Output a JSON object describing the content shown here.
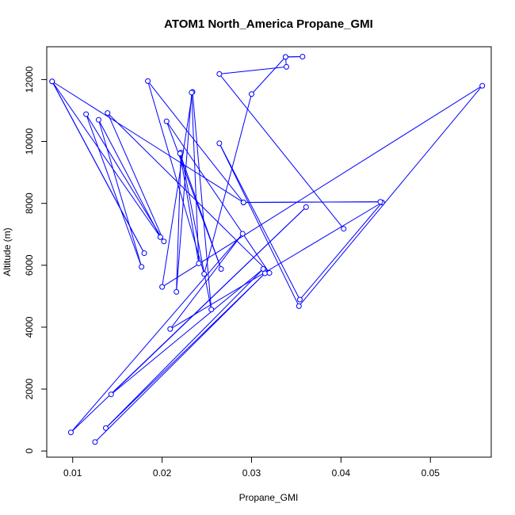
{
  "chart_data": {
    "type": "line",
    "title": "ATOM1 North_America Propane_GMI",
    "xlabel": "Propane_GMI",
    "ylabel": "Altitude (m)",
    "xlim": [
      0.0071,
      0.0568
    ],
    "ylim": [
      -200,
      13060
    ],
    "x_ticks": [
      0.01,
      0.02,
      0.03,
      0.04,
      0.05
    ],
    "x_tick_labels": [
      "0.01",
      "0.02",
      "0.03",
      "0.04",
      "0.05"
    ],
    "y_ticks": [
      0,
      2000,
      4000,
      6000,
      8000,
      10000,
      12000
    ],
    "y_tick_labels": [
      "0",
      "2000",
      "4000",
      "6000",
      "8000",
      "10000",
      "12000"
    ],
    "grid": false,
    "legend": "none",
    "colors": {
      "series": "#0000ff",
      "axes": "#000000",
      "background": "#ffffff"
    },
    "series": [
      {
        "marker": "open-circle",
        "points": [
          [
            0.0125,
            290
          ],
          [
            0.0315,
            5740
          ],
          [
            0.0137,
            740
          ],
          [
            0.0313,
            5880
          ],
          [
            0.0143,
            1830
          ],
          [
            0.0361,
            7880
          ],
          [
            0.0098,
            600
          ],
          [
            0.029,
            7020
          ],
          [
            0.0209,
            3940
          ],
          [
            0.0446,
            8030
          ],
          [
            0.0354,
            4890
          ],
          [
            0.0264,
            9940
          ],
          [
            0.0353,
            4680
          ],
          [
            0.0558,
            11800
          ],
          [
            0.02,
            5300
          ],
          [
            0.0234,
            11600
          ],
          [
            0.0255,
            4570
          ],
          [
            0.0221,
            9640
          ],
          [
            0.0216,
            5140
          ],
          [
            0.0233,
            11580
          ],
          [
            0.0241,
            6060
          ],
          [
            0.022,
            9610
          ],
          [
            0.0266,
            5880
          ],
          [
            0.0205,
            10650
          ],
          [
            0.032,
            5750
          ],
          [
            0.0139,
            10920
          ],
          [
            0.0202,
            6770
          ],
          [
            0.0115,
            10880
          ],
          [
            0.0177,
            5950
          ],
          [
            0.0129,
            10700
          ],
          [
            0.0198,
            6910
          ],
          [
            0.0077,
            11940
          ],
          [
            0.018,
            6390
          ],
          [
            0.0077,
            11940
          ],
          [
            0.0291,
            8030
          ],
          [
            0.0444,
            8050
          ],
          [
            0.0291,
            8030
          ],
          [
            0.0184,
            11950
          ],
          [
            0.0247,
            5720
          ],
          [
            0.03,
            11530
          ],
          [
            0.0338,
            12730
          ],
          [
            0.0357,
            12740
          ],
          [
            0.0338,
            12730
          ],
          [
            0.0339,
            12410
          ],
          [
            0.0264,
            12180
          ],
          [
            0.0403,
            7180
          ]
        ]
      }
    ]
  }
}
